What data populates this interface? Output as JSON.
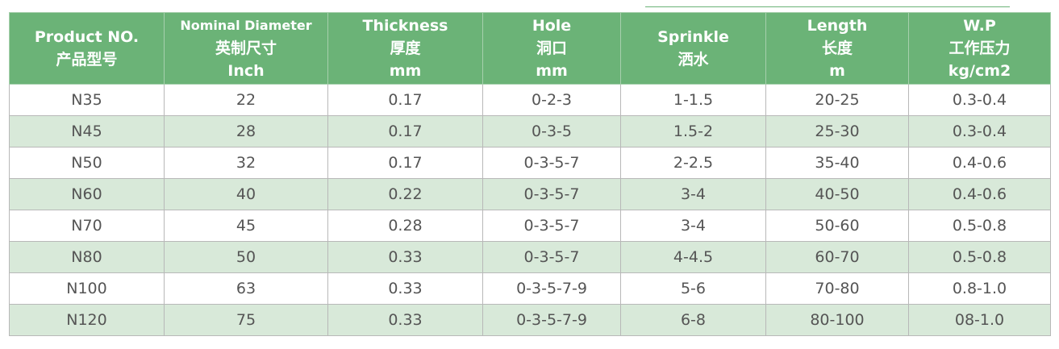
{
  "headers": [
    [
      "Product NO.",
      "产品型号"
    ],
    [
      "Nominal Diameter",
      "英制尺寸",
      "Inch"
    ],
    [
      "Thickness",
      "厚度",
      "mm"
    ],
    [
      "Hole",
      "洞口",
      "mm"
    ],
    [
      "Sprinkle",
      "洒水"
    ],
    [
      "Length",
      "长度",
      "m"
    ],
    [
      "W.P",
      "工作压力",
      "kg/cm2"
    ]
  ],
  "rows": [
    [
      "N35",
      "22",
      "0.17",
      "0-2-3",
      "1-1.5",
      "20-25",
      "0.3-0.4"
    ],
    [
      "N45",
      "28",
      "0.17",
      "0-3-5",
      "1.5-2",
      "25-30",
      "0.3-0.4"
    ],
    [
      "N50",
      "32",
      "0.17",
      "0-3-5-7",
      "2-2.5",
      "35-40",
      "0.4-0.6"
    ],
    [
      "N60",
      "40",
      "0.22",
      "0-3-5-7",
      "3-4",
      "40-50",
      "0.4-0.6"
    ],
    [
      "N70",
      "45",
      "0.28",
      "0-3-5-7",
      "3-4",
      "50-60",
      "0.5-0.8"
    ],
    [
      "N80",
      "50",
      "0.33",
      "0-3-5-7",
      "4-4.5",
      "60-70",
      "0.5-0.8"
    ],
    [
      "N100",
      "63",
      "0.33",
      "0-3-5-7-9",
      "5-6",
      "70-80",
      "0.8-1.0"
    ],
    [
      "N120",
      "75",
      "0.33",
      "0-3-5-7-9",
      "6-8",
      "80-100",
      "08-1.0"
    ]
  ],
  "colors": {
    "header_bg": "#6bb377",
    "alt_row_bg": "#d8e9d9",
    "text": "#555555"
  }
}
